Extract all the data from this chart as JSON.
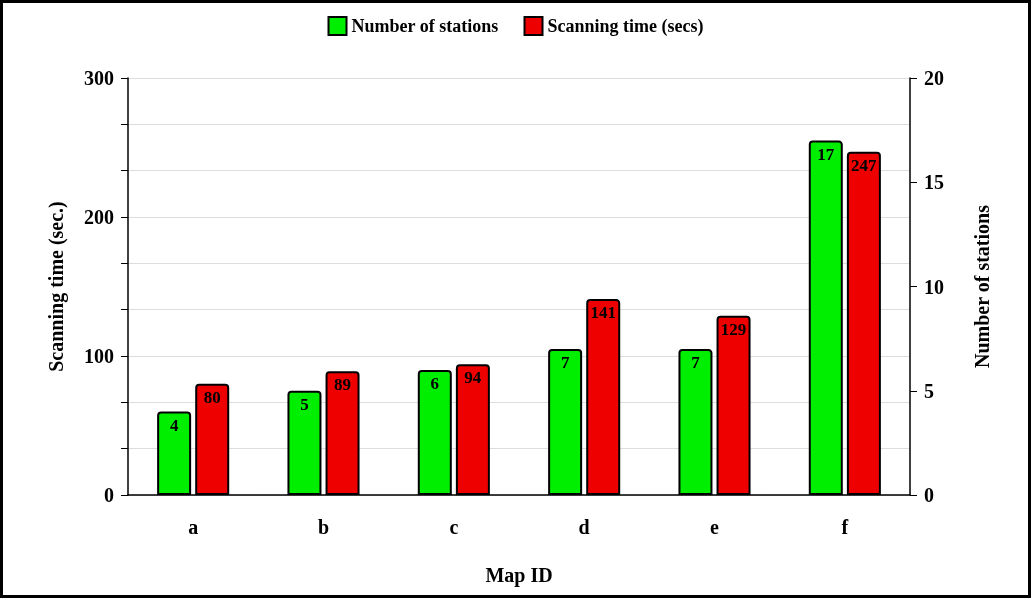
{
  "chart_data": {
    "type": "bar",
    "xlabel": "Map ID",
    "ylabel": "Scanning time (sec.)",
    "y2label": "Number of stations",
    "categories": [
      "a",
      "b",
      "c",
      "d",
      "e",
      "f"
    ],
    "series": [
      {
        "name": "Number of stations",
        "color": "#00ee00",
        "axis": "y2",
        "values": [
          4,
          5,
          6,
          7,
          7,
          17
        ]
      },
      {
        "name": "Scanning time (secs)",
        "color": "#ee0000",
        "values": [
          80,
          89,
          94,
          141,
          129,
          247
        ]
      }
    ],
    "ylim": [
      0,
      300
    ],
    "yticks": [
      0,
      {
        "value": 33.3,
        "label": null
      },
      {
        "value": 66.7,
        "label": null
      },
      100,
      {
        "value": 133.3,
        "label": null
      },
      {
        "value": 166.7,
        "label": null
      },
      200,
      {
        "value": 233.3,
        "label": null
      },
      {
        "value": 266.7,
        "label": null
      },
      300
    ],
    "y2lim": [
      0,
      20
    ],
    "y2ticks": [
      0,
      5,
      10,
      15,
      20
    ],
    "grid": "y",
    "legend": "top",
    "data_labels": true
  }
}
